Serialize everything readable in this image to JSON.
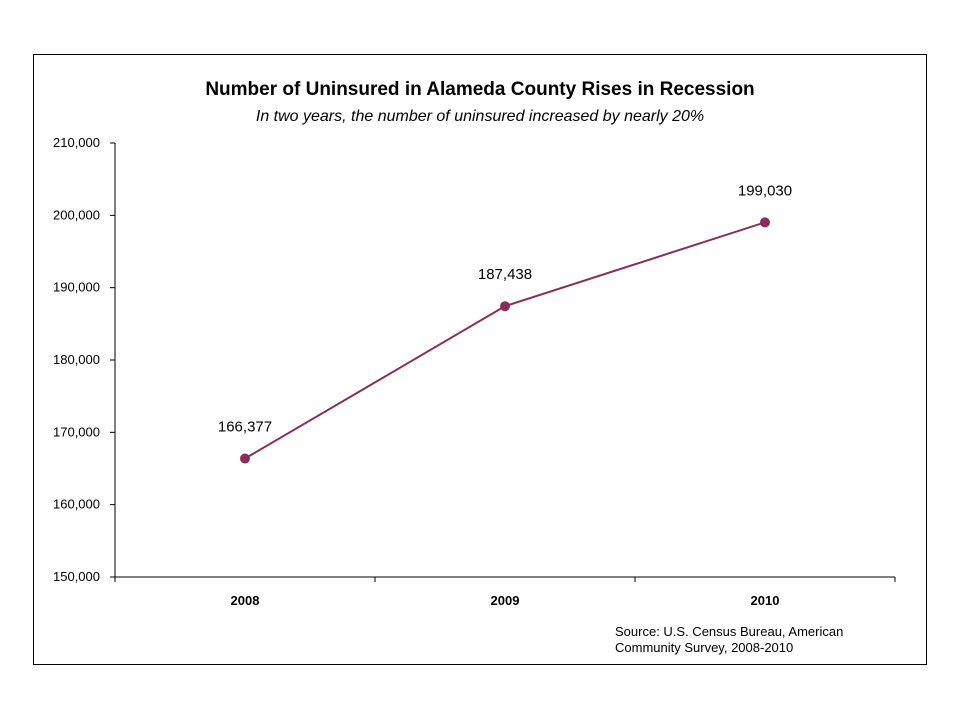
{
  "chart_data": {
    "type": "line",
    "title": "Number of Uninsured in Alameda County Rises in Recession",
    "subtitle": "In two years, the number of uninsured increased by nearly 20%",
    "xlabel": "",
    "ylabel": "",
    "categories": [
      "2008",
      "2009",
      "2010"
    ],
    "series": [
      {
        "values": [
          166377,
          187438,
          199030
        ],
        "labels": [
          "166,377",
          "187,438",
          "199,030"
        ]
      }
    ],
    "ylim": [
      150000,
      210000
    ],
    "y_ticks": [
      150000,
      160000,
      170000,
      180000,
      190000,
      200000,
      210000
    ],
    "y_tick_labels": [
      "150,000",
      "160,000",
      "170,000",
      "180,000",
      "190,000",
      "200,000",
      "210,000"
    ],
    "grid": false,
    "legend": "none",
    "colors": {
      "series": "#8B2C5E",
      "axis": "#000000"
    },
    "source_lines": [
      "Source: U.S. Census Bureau, American",
      "Community Survey, 2008-2010"
    ]
  }
}
